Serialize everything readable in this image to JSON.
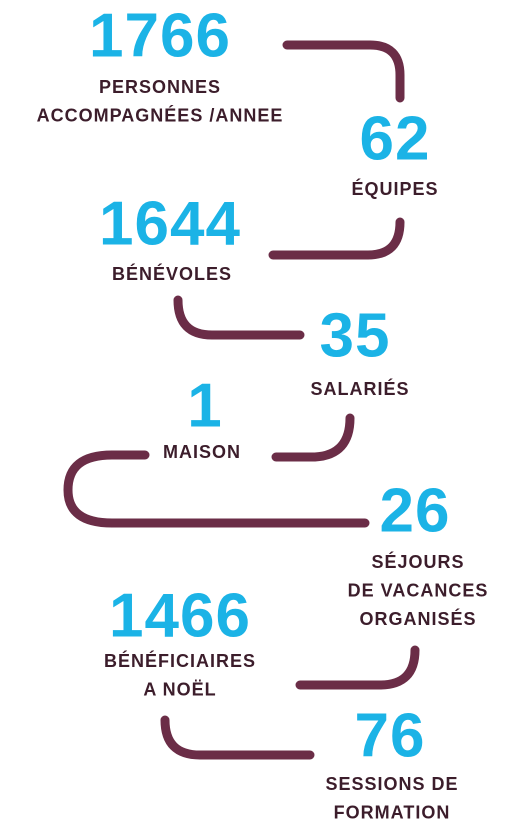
{
  "items": [
    {
      "number": 1766,
      "label": [
        "PERSONNES",
        "ACCOMPAGNÉES /ANNEE"
      ]
    },
    {
      "number": 62,
      "label": [
        "ÉQUIPES"
      ]
    },
    {
      "number": 1644,
      "label": [
        "BÉNÉVOLES"
      ]
    },
    {
      "number": 35,
      "label": [
        "SALARIÉS"
      ]
    },
    {
      "number": 1,
      "label": [
        "MAISON"
      ]
    },
    {
      "number": 26,
      "label": [
        "SÉJOURS",
        "DE VACANCES",
        "ORGANISÉS"
      ]
    },
    {
      "number": 1466,
      "label": [
        "BÉNÉFICIAIRES",
        "A NOËL"
      ]
    },
    {
      "number": 76,
      "label": [
        "SESSIONS DE",
        "FORMATION"
      ]
    }
  ]
}
